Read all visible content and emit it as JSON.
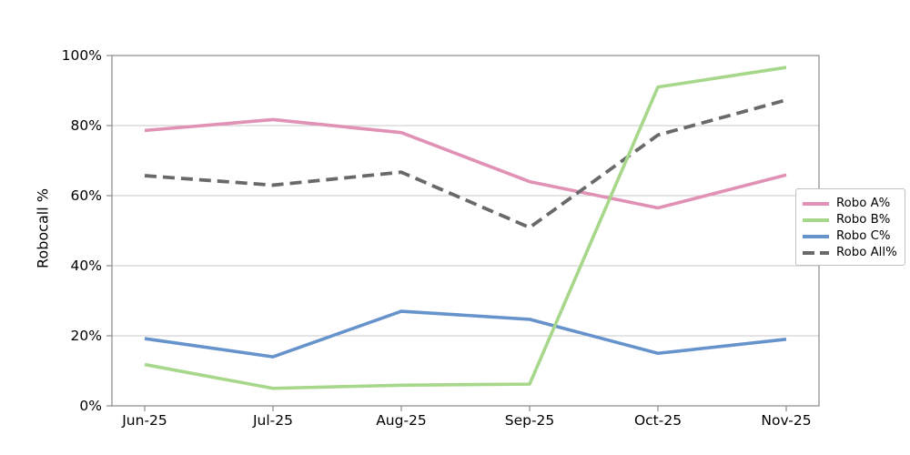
{
  "chart_data": {
    "type": "line",
    "title": "",
    "xlabel": "",
    "ylabel": "Robocall %",
    "categories": [
      "Jun-25",
      "Jul-25",
      "Aug-25",
      "Sep-25",
      "Oct-25",
      "Nov-25"
    ],
    "y_ticks": [
      "0%",
      "20%",
      "40%",
      "60%",
      "80%",
      "100%"
    ],
    "ylim": [
      0,
      100
    ],
    "grid": "horizontal",
    "legend_position": "right",
    "draw_order": [
      0,
      3,
      2,
      1
    ],
    "series": [
      {
        "name": "Robo A%",
        "color": "#e091b5",
        "style": "solid",
        "values": [
          78.6,
          81.7,
          78.0,
          64.0,
          56.5,
          65.9
        ]
      },
      {
        "name": "Robo B%",
        "color": "#a7d78a",
        "style": "solid",
        "values": [
          11.8,
          5.0,
          5.9,
          6.2,
          91.0,
          96.6
        ]
      },
      {
        "name": "Robo C%",
        "color": "#6793cd",
        "style": "solid",
        "values": [
          19.2,
          14.0,
          27.0,
          24.7,
          15.0,
          19.0
        ]
      },
      {
        "name": "Robo All%",
        "color": "#696969",
        "style": "dashed",
        "values": [
          65.7,
          63.0,
          66.7,
          50.9,
          77.3,
          87.3
        ]
      }
    ],
    "colors": {
      "axis": "#8a8a8a",
      "gridline": "#c9c9c9",
      "tick_label": "#000000"
    }
  }
}
